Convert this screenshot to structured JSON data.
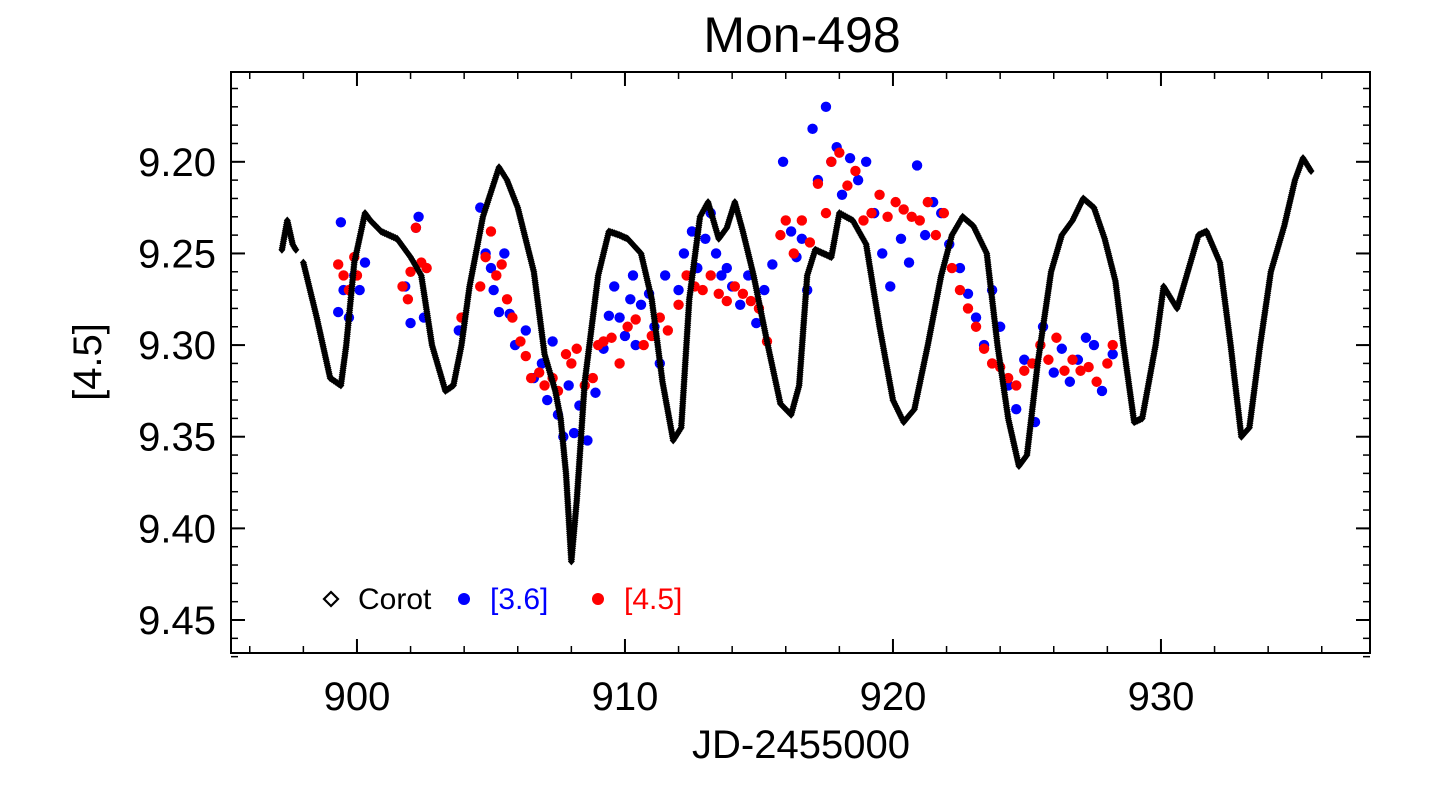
{
  "chart_data": {
    "type": "scatter",
    "title": "Mon-498",
    "xlabel": "JD-2455000",
    "ylabel": "[4.5]",
    "xlim": [
      895.3,
      937.8
    ],
    "ylim": [
      9.151,
      9.468
    ],
    "y_inverted": true,
    "xticks": [
      900,
      910,
      920,
      930
    ],
    "xtick_labels": [
      "900",
      "910",
      "920",
      "930"
    ],
    "yticks": [
      9.2,
      9.25,
      9.3,
      9.35,
      9.4,
      9.45
    ],
    "ytick_labels": [
      "9.20",
      "9.25",
      "9.30",
      "9.35",
      "9.40",
      "9.45"
    ],
    "legend": {
      "position": "bottom-left",
      "entries": [
        {
          "label": "Corot",
          "marker": "diamond-open",
          "color": "#000000"
        },
        {
          "label": "[3.6]",
          "marker": "circle",
          "color": "#0000ff"
        },
        {
          "label": "[4.5]",
          "marker": "circle",
          "color": "#ff0000"
        }
      ]
    },
    "series": [
      {
        "name": "Corot",
        "marker": "diamond",
        "color": "#000000",
        "x": [
          897.2,
          897.4,
          897.6,
          898.0,
          898.5,
          899.0,
          899.4,
          899.6,
          899.9,
          900.3,
          900.5,
          900.9,
          901.5,
          902.0,
          902.4,
          902.8,
          903.3,
          903.6,
          903.9,
          904.2,
          904.7,
          905.1,
          905.3,
          905.6,
          906.0,
          906.6,
          907.0,
          907.4,
          907.6,
          907.8,
          908.0,
          908.2,
          908.5,
          909.0,
          909.4,
          909.8,
          910.1,
          910.6,
          911.0,
          911.4,
          911.8,
          912.1,
          912.4,
          912.8,
          913.1,
          913.5,
          913.8,
          914.1,
          914.4,
          914.8,
          915.3,
          915.8,
          916.2,
          916.5,
          916.8,
          917.1,
          917.4,
          917.7,
          918.0,
          918.5,
          919.0,
          919.5,
          920.0,
          920.4,
          920.8,
          921.3,
          921.8,
          922.2,
          922.6,
          923.0,
          923.5,
          923.9,
          924.3,
          924.7,
          925.0,
          925.4,
          925.9,
          926.3,
          926.7,
          927.1,
          927.5,
          927.9,
          928.3,
          928.6,
          929.0,
          929.3,
          929.8,
          930.1,
          930.6,
          931.0,
          931.4,
          931.7,
          932.2,
          932.6,
          933.0,
          933.3,
          933.7,
          934.1,
          934.6,
          935.0,
          935.3,
          935.6
        ],
        "y": [
          9.248,
          9.232,
          9.245,
          9.255,
          9.285,
          9.318,
          9.322,
          9.3,
          9.255,
          9.228,
          9.232,
          9.238,
          9.242,
          9.252,
          9.262,
          9.3,
          9.325,
          9.322,
          9.3,
          9.268,
          9.23,
          9.212,
          9.203,
          9.21,
          9.225,
          9.26,
          9.305,
          9.325,
          9.34,
          9.37,
          9.418,
          9.385,
          9.32,
          9.262,
          9.238,
          9.24,
          9.242,
          9.25,
          9.275,
          9.32,
          9.352,
          9.345,
          9.275,
          9.23,
          9.222,
          9.242,
          9.236,
          9.222,
          9.238,
          9.262,
          9.298,
          9.332,
          9.338,
          9.322,
          9.262,
          9.248,
          9.25,
          9.252,
          9.228,
          9.232,
          9.245,
          9.29,
          9.33,
          9.342,
          9.335,
          9.3,
          9.262,
          9.24,
          9.23,
          9.235,
          9.25,
          9.3,
          9.34,
          9.366,
          9.36,
          9.31,
          9.26,
          9.24,
          9.232,
          9.22,
          9.225,
          9.242,
          9.265,
          9.3,
          9.342,
          9.34,
          9.3,
          9.268,
          9.28,
          9.26,
          9.24,
          9.238,
          9.255,
          9.3,
          9.35,
          9.345,
          9.3,
          9.26,
          9.235,
          9.21,
          9.198,
          9.205
        ]
      },
      {
        "name": "[3.6]",
        "marker": "circle",
        "color": "#0000ff",
        "x": [
          899.3,
          899.4,
          899.5,
          899.7,
          899.9,
          900.1,
          900.3,
          901.8,
          902.0,
          902.2,
          902.3,
          902.5,
          903.8,
          904.6,
          904.8,
          905.0,
          905.1,
          905.3,
          905.5,
          905.7,
          905.9,
          906.3,
          906.6,
          906.9,
          907.1,
          907.3,
          907.5,
          907.7,
          907.9,
          908.1,
          908.3,
          908.6,
          908.9,
          909.2,
          909.4,
          909.6,
          909.8,
          910.0,
          910.2,
          910.3,
          910.4,
          910.6,
          910.9,
          911.1,
          911.3,
          911.5,
          912.0,
          912.2,
          912.5,
          912.7,
          913.0,
          913.2,
          913.4,
          913.6,
          913.8,
          914.0,
          914.3,
          914.6,
          914.9,
          915.2,
          915.5,
          915.9,
          916.2,
          916.4,
          916.6,
          916.8,
          917.0,
          917.2,
          917.5,
          917.7,
          917.9,
          918.1,
          918.4,
          918.7,
          919.0,
          919.3,
          919.6,
          919.9,
          920.3,
          920.6,
          920.9,
          921.2,
          921.5,
          921.8,
          922.1,
          922.5,
          922.8,
          923.1,
          923.4,
          923.7,
          924.0,
          924.3,
          924.6,
          924.9,
          925.3,
          925.6,
          926.0,
          926.3,
          926.6,
          926.9,
          927.2,
          927.5,
          927.8,
          928.2
        ],
        "y": [
          9.282,
          9.233,
          9.27,
          9.285,
          9.262,
          9.27,
          9.255,
          9.268,
          9.288,
          9.236,
          9.23,
          9.285,
          9.292,
          9.225,
          9.25,
          9.258,
          9.27,
          9.282,
          9.25,
          9.283,
          9.3,
          9.292,
          9.318,
          9.31,
          9.33,
          9.298,
          9.338,
          9.35,
          9.322,
          9.348,
          9.333,
          9.352,
          9.326,
          9.302,
          9.284,
          9.268,
          9.285,
          9.295,
          9.275,
          9.262,
          9.3,
          9.278,
          9.272,
          9.29,
          9.31,
          9.262,
          9.27,
          9.25,
          9.238,
          9.258,
          9.242,
          9.228,
          9.25,
          9.262,
          9.258,
          9.268,
          9.278,
          9.262,
          9.288,
          9.27,
          9.256,
          9.2,
          9.238,
          9.252,
          9.242,
          9.27,
          9.182,
          9.21,
          9.17,
          9.2,
          9.192,
          9.218,
          9.198,
          9.21,
          9.2,
          9.228,
          9.25,
          9.268,
          9.242,
          9.255,
          9.202,
          9.24,
          9.222,
          9.228,
          9.245,
          9.258,
          9.272,
          9.285,
          9.3,
          9.27,
          9.29,
          9.322,
          9.335,
          9.308,
          9.342,
          9.29,
          9.315,
          9.302,
          9.32,
          9.308,
          9.296,
          9.3,
          9.325,
          9.305
        ]
      },
      {
        "name": "[4.5]",
        "marker": "circle",
        "color": "#ff0000",
        "x": [
          899.3,
          899.5,
          899.7,
          899.9,
          900.0,
          901.7,
          901.9,
          902.0,
          902.2,
          902.4,
          902.6,
          903.9,
          904.6,
          904.8,
          905.0,
          905.2,
          905.4,
          905.6,
          905.8,
          906.1,
          906.3,
          906.5,
          906.8,
          907.0,
          907.3,
          907.5,
          907.8,
          908.0,
          908.2,
          908.5,
          908.8,
          909.0,
          909.2,
          909.5,
          909.8,
          910.1,
          910.4,
          910.7,
          911.0,
          911.3,
          911.6,
          912.0,
          912.3,
          912.6,
          912.9,
          913.2,
          913.5,
          913.8,
          914.1,
          914.4,
          914.7,
          915.0,
          915.3,
          915.8,
          916.0,
          916.3,
          916.6,
          916.9,
          917.2,
          917.5,
          917.7,
          918.0,
          918.3,
          918.6,
          918.9,
          919.2,
          919.5,
          919.8,
          920.1,
          920.4,
          920.7,
          921.0,
          921.3,
          921.6,
          921.9,
          922.2,
          922.5,
          922.8,
          923.1,
          923.4,
          923.7,
          924.0,
          924.3,
          924.6,
          924.9,
          925.2,
          925.5,
          925.8,
          926.1,
          926.4,
          926.7,
          927.0,
          927.3,
          927.6,
          928.0,
          928.2
        ],
        "y": [
          9.256,
          9.262,
          9.27,
          9.252,
          9.262,
          9.268,
          9.275,
          9.26,
          9.236,
          9.255,
          9.258,
          9.285,
          9.268,
          9.252,
          9.238,
          9.262,
          9.256,
          9.275,
          9.285,
          9.298,
          9.306,
          9.318,
          9.315,
          9.322,
          9.318,
          9.325,
          9.305,
          9.31,
          9.302,
          9.322,
          9.318,
          9.3,
          9.298,
          9.296,
          9.31,
          9.29,
          9.286,
          9.3,
          9.295,
          9.285,
          9.292,
          9.278,
          9.262,
          9.268,
          9.27,
          9.262,
          9.272,
          9.276,
          9.268,
          9.272,
          9.276,
          9.28,
          9.298,
          9.24,
          9.232,
          9.25,
          9.232,
          9.244,
          9.212,
          9.228,
          9.2,
          9.195,
          9.213,
          9.205,
          9.232,
          9.228,
          9.218,
          9.23,
          9.222,
          9.226,
          9.23,
          9.232,
          9.222,
          9.24,
          9.228,
          9.258,
          9.27,
          9.28,
          9.29,
          9.302,
          9.31,
          9.312,
          9.318,
          9.322,
          9.314,
          9.31,
          9.3,
          9.308,
          9.296,
          9.314,
          9.308,
          9.314,
          9.312,
          9.32,
          9.31,
          9.3
        ]
      }
    ]
  }
}
